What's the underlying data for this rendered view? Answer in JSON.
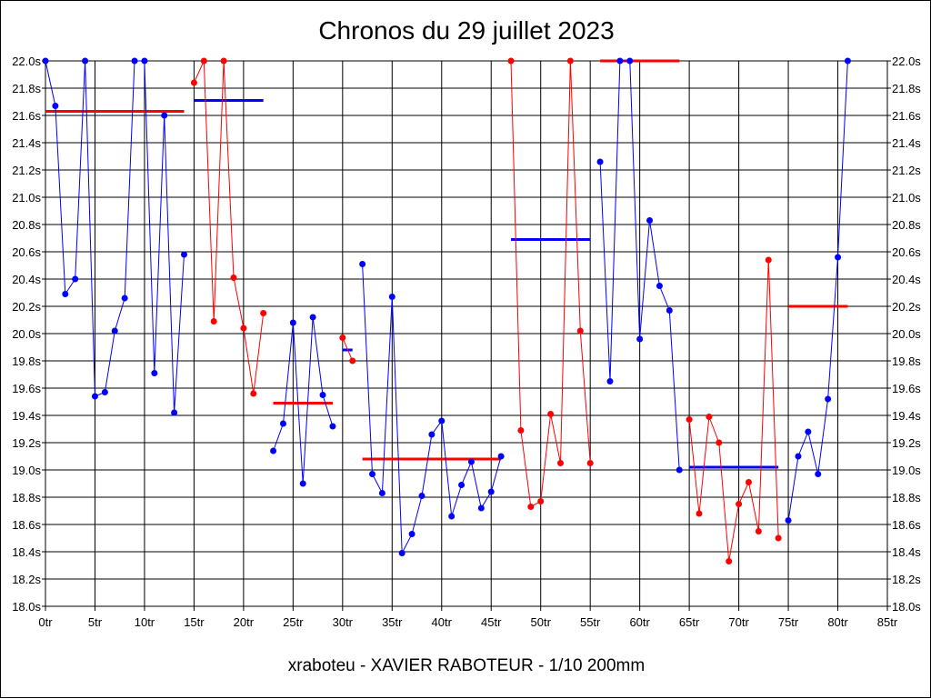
{
  "chart_data": {
    "type": "line",
    "title": "Chronos du 29 juillet 2023",
    "footer": "xraboteu - XAVIER RABOTEUR - 1/10 200mm",
    "xlabel": "",
    "ylabel": "",
    "xlim": [
      0,
      85
    ],
    "ylim": [
      18.0,
      22.0
    ],
    "x_ticks": [
      0,
      5,
      10,
      15,
      20,
      25,
      30,
      35,
      40,
      45,
      50,
      55,
      60,
      65,
      70,
      75,
      80,
      85
    ],
    "x_tick_labels": [
      "0tr",
      "5tr",
      "10tr",
      "15tr",
      "20tr",
      "25tr",
      "30tr",
      "35tr",
      "40tr",
      "45tr",
      "50tr",
      "55tr",
      "60tr",
      "65tr",
      "70tr",
      "75tr",
      "80tr",
      "85tr"
    ],
    "y_ticks": [
      18.0,
      18.2,
      18.4,
      18.6,
      18.8,
      19.0,
      19.2,
      19.4,
      19.6,
      19.8,
      20.0,
      20.2,
      20.4,
      20.6,
      20.8,
      21.0,
      21.2,
      21.4,
      21.6,
      21.8,
      22.0
    ],
    "y_tick_labels": [
      "18.0s",
      "18.2s",
      "18.4s",
      "18.6s",
      "18.8s",
      "19.0s",
      "19.2s",
      "19.4s",
      "19.6s",
      "19.8s",
      "20.0s",
      "20.2s",
      "20.4s",
      "20.6s",
      "20.8s",
      "21.0s",
      "21.2s",
      "21.4s",
      "21.6s",
      "21.8s",
      "22.0s"
    ],
    "grid": true,
    "colors": {
      "blue": "#0000ff",
      "red": "#ff0000"
    },
    "series": [
      {
        "name": "relay-1",
        "color": "blue",
        "x": [
          0,
          1,
          2,
          3,
          4,
          5,
          6,
          7,
          8,
          9,
          10,
          11,
          12,
          13,
          14
        ],
        "values": [
          22.0,
          21.67,
          20.29,
          20.4,
          22.0,
          19.54,
          19.57,
          20.02,
          20.26,
          22.0,
          22.0,
          19.71,
          21.6,
          19.42,
          20.58
        ]
      },
      {
        "name": "relay-2",
        "color": "red",
        "x": [
          15,
          16,
          17,
          18,
          19,
          20,
          21,
          22
        ],
        "values": [
          21.84,
          22.0,
          20.09,
          22.0,
          20.41,
          20.04,
          19.56,
          20.15
        ]
      },
      {
        "name": "relay-3",
        "color": "blue",
        "x": [
          23,
          24,
          25,
          26,
          27,
          28,
          29
        ],
        "values": [
          19.14,
          19.34,
          20.08,
          18.9,
          20.12,
          19.55,
          19.32
        ]
      },
      {
        "name": "relay-4",
        "color": "red",
        "x": [
          30,
          31
        ],
        "values": [
          19.97,
          19.8
        ]
      },
      {
        "name": "relay-5",
        "color": "blue",
        "x": [
          32,
          33,
          34,
          35,
          36,
          37,
          38,
          39,
          40,
          41,
          42,
          43,
          44,
          45,
          46
        ],
        "values": [
          20.51,
          18.97,
          18.83,
          20.27,
          18.39,
          18.53,
          18.81,
          19.26,
          19.36,
          18.66,
          18.89,
          19.06,
          18.72,
          18.84,
          19.1
        ]
      },
      {
        "name": "relay-6",
        "color": "red",
        "x": [
          47,
          48,
          49,
          50,
          51,
          52,
          53,
          54,
          55
        ],
        "values": [
          22.0,
          19.29,
          18.73,
          18.77,
          19.41,
          19.05,
          22.0,
          20.02,
          19.05
        ]
      },
      {
        "name": "relay-7",
        "color": "blue",
        "x": [
          56,
          57,
          58,
          59,
          60,
          61,
          62,
          63,
          64
        ],
        "values": [
          21.26,
          19.65,
          22.0,
          22.0,
          19.96,
          20.83,
          20.35,
          20.17,
          19.0
        ]
      },
      {
        "name": "relay-8",
        "color": "red",
        "x": [
          65,
          66,
          67,
          68,
          69,
          70,
          71,
          72,
          73,
          74
        ],
        "values": [
          19.37,
          18.68,
          19.39,
          19.2,
          18.33,
          18.75,
          18.91,
          18.55,
          20.54,
          18.5
        ]
      },
      {
        "name": "relay-9",
        "color": "blue",
        "x": [
          75,
          76,
          77,
          78,
          79,
          80,
          81
        ],
        "values": [
          18.63,
          19.1,
          19.28,
          18.97,
          19.52,
          20.56,
          22.0
        ]
      }
    ],
    "averages": [
      {
        "name": "avg-relay-1",
        "color": "red",
        "x": [
          0,
          14
        ],
        "value": 21.63
      },
      {
        "name": "avg-relay-2",
        "color": "blue",
        "x": [
          15,
          22
        ],
        "value": 21.71
      },
      {
        "name": "avg-relay-3",
        "color": "red",
        "x": [
          23,
          29
        ],
        "value": 19.49
      },
      {
        "name": "avg-relay-4",
        "color": "blue",
        "x": [
          30,
          31
        ],
        "value": 19.88
      },
      {
        "name": "avg-relay-5",
        "color": "red",
        "x": [
          32,
          46
        ],
        "value": 19.08
      },
      {
        "name": "avg-relay-6",
        "color": "blue",
        "x": [
          47,
          55
        ],
        "value": 20.69
      },
      {
        "name": "avg-relay-7",
        "color": "red",
        "x": [
          56,
          64
        ],
        "value": 22.0
      },
      {
        "name": "avg-relay-8",
        "color": "blue",
        "x": [
          65,
          74
        ],
        "value": 19.02
      },
      {
        "name": "avg-relay-9",
        "color": "red",
        "x": [
          75,
          81
        ],
        "value": 20.2
      }
    ]
  }
}
